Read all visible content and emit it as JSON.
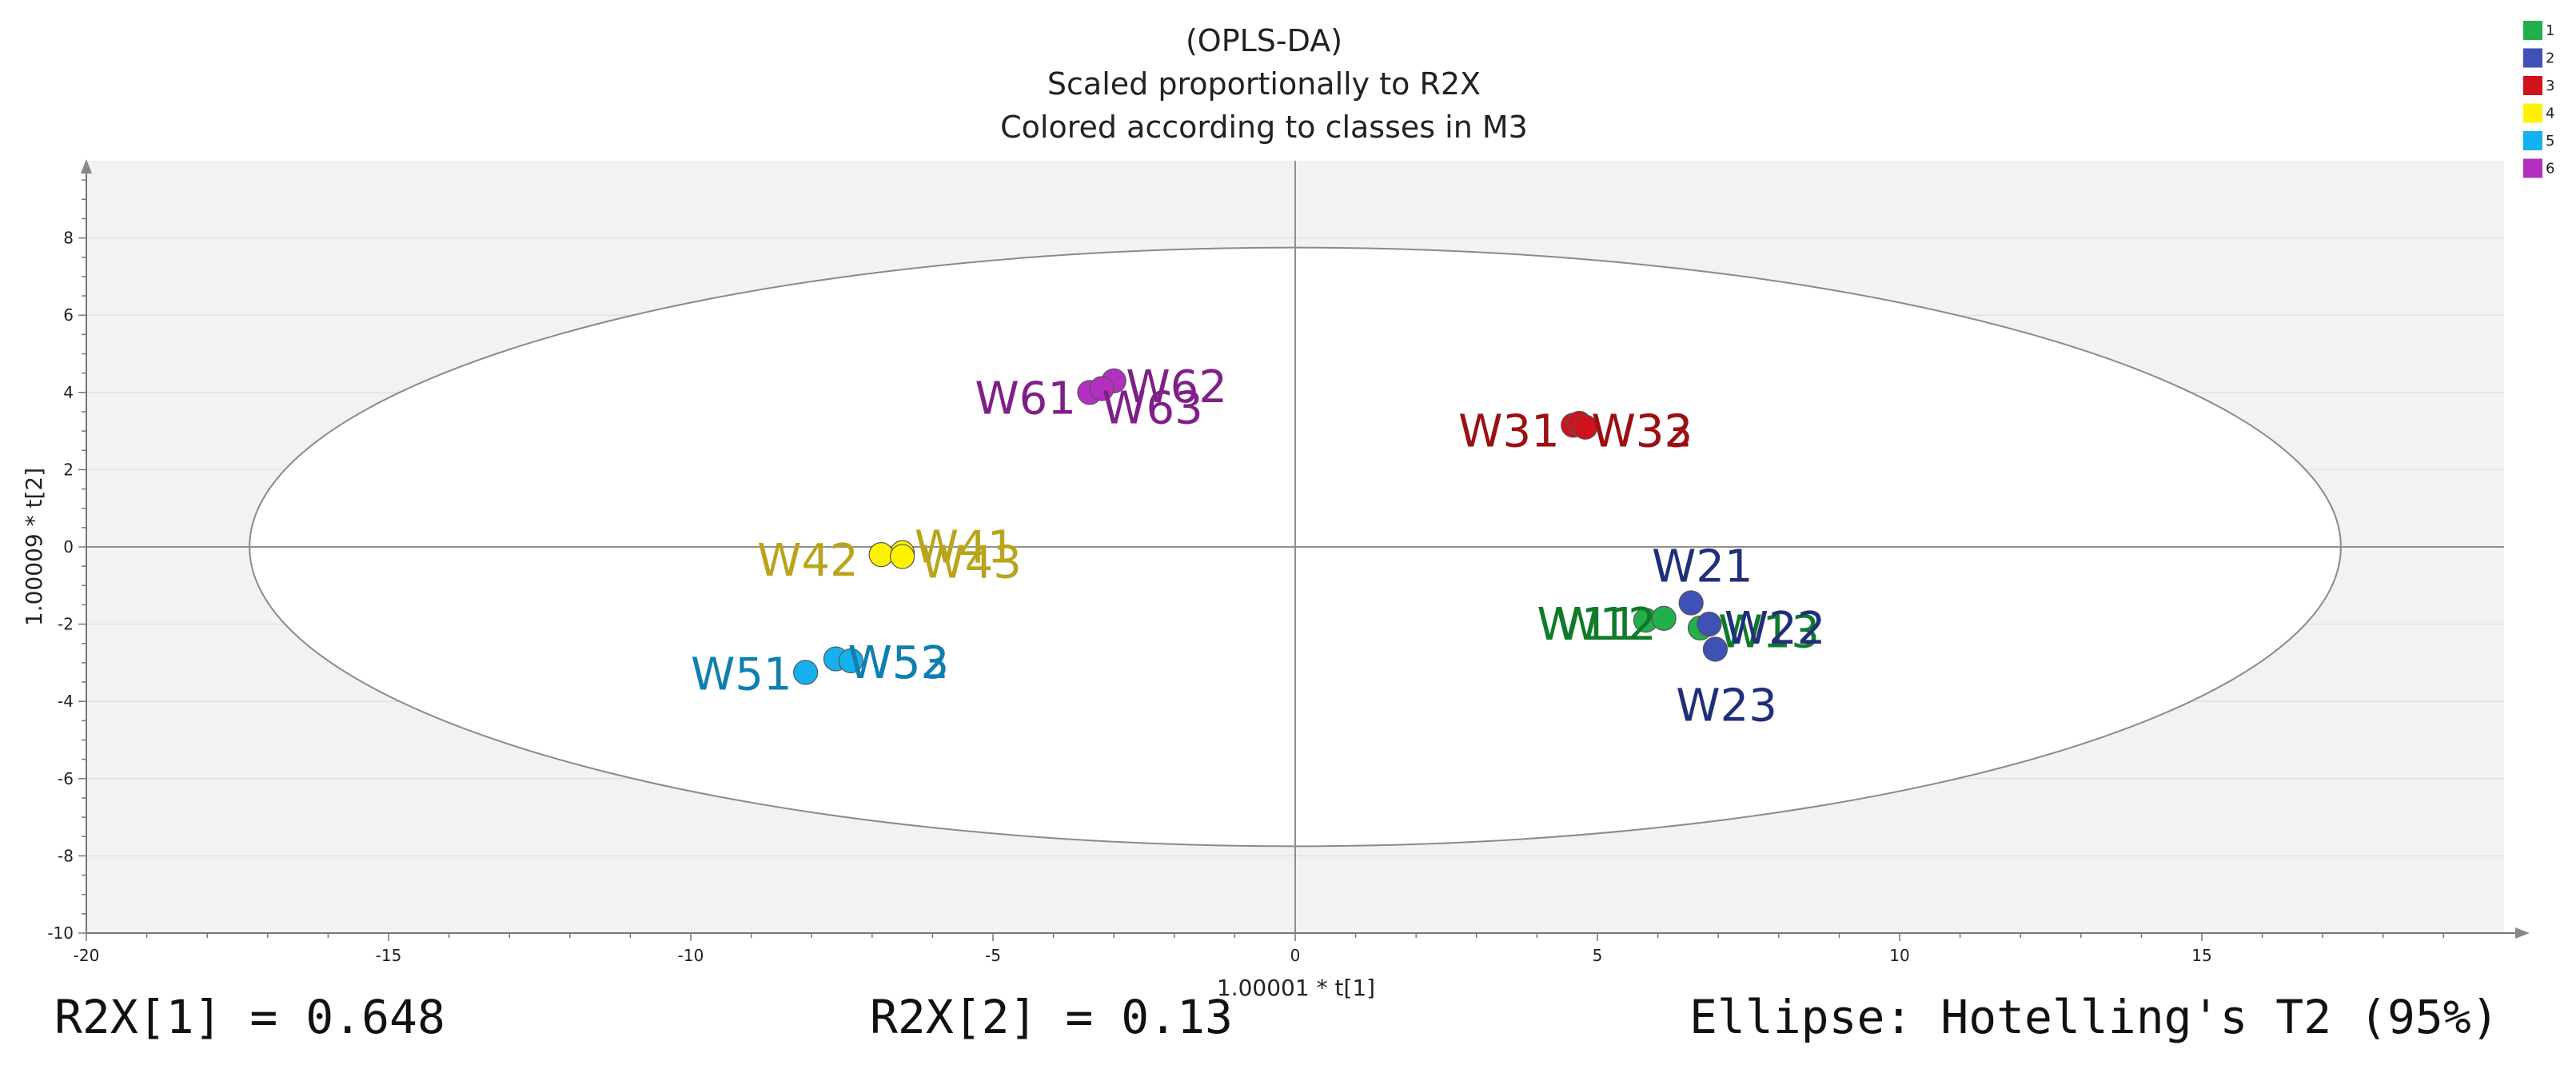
{
  "chart_data": {
    "type": "scatter",
    "title_lines": [
      "(OPLS-DA)",
      "Scaled proportionally to R2X",
      "Colored according to classes in M3"
    ],
    "xlabel": "1.00001 * t[1]",
    "ylabel": "1.00009 * t[2]",
    "xlim": [
      -20,
      20
    ],
    "ylim": [
      -10,
      10
    ],
    "xticks": [
      -20,
      -15,
      -10,
      -5,
      0,
      5,
      10,
      15
    ],
    "yticks": [
      -10,
      -8,
      -6,
      -4,
      -2,
      0,
      2,
      4,
      6,
      8
    ],
    "ellipse": {
      "rx": 17.3,
      "ry": 7.75,
      "cx": 0,
      "cy": 0
    },
    "legend": [
      {
        "name": "1",
        "color": "#21b04b"
      },
      {
        "name": "2",
        "color": "#3f51b5"
      },
      {
        "name": "3",
        "color": "#d0121b"
      },
      {
        "name": "4",
        "color": "#fff200"
      },
      {
        "name": "5",
        "color": "#15b1ef"
      },
      {
        "name": "6",
        "color": "#b32fc0"
      }
    ],
    "series": [
      {
        "name": "1",
        "color": "#21b04b",
        "label_color": "#0f7a2a",
        "points": [
          {
            "label": "W11",
            "x": 5.8,
            "y": -1.9,
            "lx": 4.0,
            "ly": -2.4
          },
          {
            "label": "W12",
            "x": 6.1,
            "y": -1.85,
            "lx": 4.3,
            "ly": -2.4
          },
          {
            "label": "W13",
            "x": 6.7,
            "y": -2.1,
            "lx": 7.0,
            "ly": -2.6
          }
        ]
      },
      {
        "name": "2",
        "color": "#3f51b5",
        "label_color": "#1f2f7a",
        "points": [
          {
            "label": "W21",
            "x": 6.55,
            "y": -1.45,
            "lx": 5.9,
            "ly": -0.9
          },
          {
            "label": "W22",
            "x": 6.85,
            "y": -2.0,
            "lx": 7.1,
            "ly": -2.5
          },
          {
            "label": "W23",
            "x": 6.95,
            "y": -2.65,
            "lx": 6.3,
            "ly": -4.5
          }
        ]
      },
      {
        "name": "3",
        "color": "#d0121b",
        "label_color": "#9b1010",
        "points": [
          {
            "label": "W31",
            "x": 4.6,
            "y": 3.15,
            "lx": 2.7,
            "ly": 2.6
          },
          {
            "label": "W32",
            "x": 4.7,
            "y": 3.2,
            "lx": 4.9,
            "ly": 2.6
          },
          {
            "label": "W33",
            "x": 4.8,
            "y": 3.1,
            "lx": 4.9,
            "ly": 2.6
          }
        ]
      },
      {
        "name": "4",
        "color": "#fff200",
        "label_color": "#b9a41b",
        "points": [
          {
            "label": "W41",
            "x": -6.5,
            "y": -0.15,
            "lx": -6.3,
            "ly": -0.4
          },
          {
            "label": "W42",
            "x": -6.85,
            "y": -0.2,
            "lx": -8.9,
            "ly": -0.75
          },
          {
            "label": "W43",
            "x": -6.5,
            "y": -0.25,
            "lx": -6.2,
            "ly": -0.8
          }
        ]
      },
      {
        "name": "5",
        "color": "#15b1ef",
        "label_color": "#0f7fb0",
        "points": [
          {
            "label": "W51",
            "x": -8.1,
            "y": -3.25,
            "lx": -10.0,
            "ly": -3.7
          },
          {
            "label": "W52",
            "x": -7.6,
            "y": -2.9,
            "lx": -7.4,
            "ly": -3.4
          },
          {
            "label": "W53",
            "x": -7.35,
            "y": -2.95,
            "lx": -7.4,
            "ly": -3.4
          }
        ]
      },
      {
        "name": "6",
        "color": "#b32fc0",
        "label_color": "#7f1f88",
        "points": [
          {
            "label": "W61",
            "x": -3.4,
            "y": 4.0,
            "lx": -5.3,
            "ly": 3.45
          },
          {
            "label": "W62",
            "x": -3.0,
            "y": 4.3,
            "lx": -2.8,
            "ly": 3.75
          },
          {
            "label": "W63",
            "x": -3.2,
            "y": 4.1,
            "lx": -3.2,
            "ly": 3.2
          }
        ]
      }
    ]
  },
  "footer": {
    "r2x1": "R2X[1] = 0.648",
    "r2x2": "R2X[2] = 0.13",
    "ellipse_note": "Ellipse: Hotelling's T2 (95%)"
  }
}
